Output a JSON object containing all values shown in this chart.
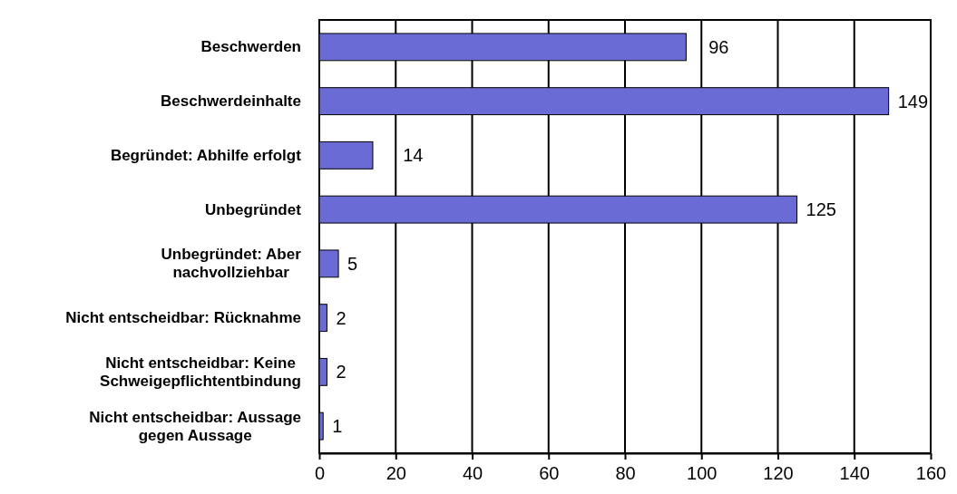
{
  "chart_data": {
    "type": "bar",
    "orientation": "horizontal",
    "categories": [
      "Beschwerden",
      "Beschwerdeinhalte",
      "Begründet: Abhilfe erfolgt",
      "Unbegründet",
      "Unbegründet: Aber\nnachvollziehbar",
      "Nicht entscheidbar: Rücknahme",
      "Nicht entscheidbar: Keine\nSchweigepflichtentbindung",
      "Nicht entscheidbar: Aussage\ngegen Aussage"
    ],
    "values": [
      96,
      149,
      14,
      125,
      5,
      2,
      2,
      1
    ],
    "color": "#6b6bd6",
    "xlim": [
      0,
      160
    ],
    "xticks": [
      0,
      20,
      40,
      60,
      80,
      100,
      120,
      140,
      160
    ],
    "grid": "x",
    "data_labels": true
  }
}
